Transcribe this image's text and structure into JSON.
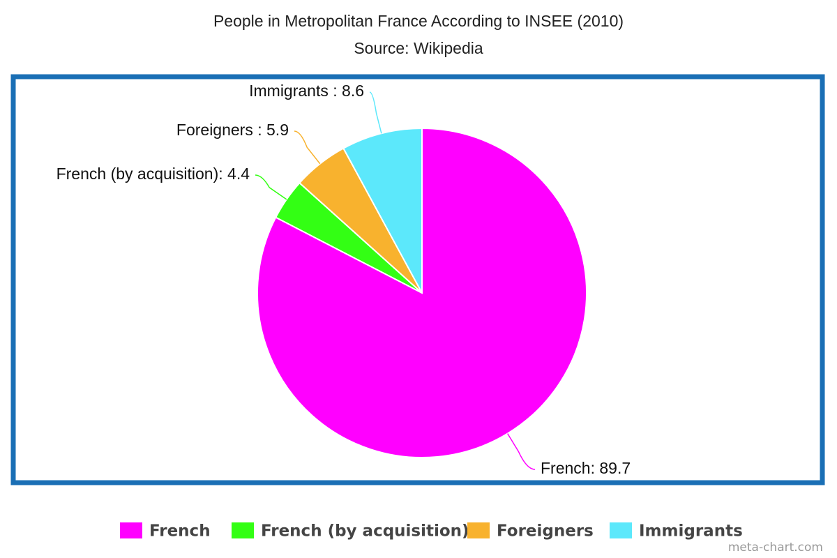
{
  "chart_data": {
    "type": "pie",
    "title": "People in Metropolitan France According to INSEE (2010)",
    "subtitle": "Source: Wikipedia",
    "categories": [
      "French",
      "French (by acquisition)",
      "Foreigners",
      "Immigrants"
    ],
    "values": [
      89.7,
      4.4,
      5.9,
      8.6
    ],
    "value_labels": [
      "French: 89.7",
      "French (by acquisition): 4.4",
      "Foreigners : 5.9",
      "Immigrants : 8.6"
    ],
    "colors": [
      "#ff00ff",
      "#33ff14",
      "#f8b22e",
      "#5ce8fb"
    ],
    "watermark": "meta-chart.com"
  }
}
